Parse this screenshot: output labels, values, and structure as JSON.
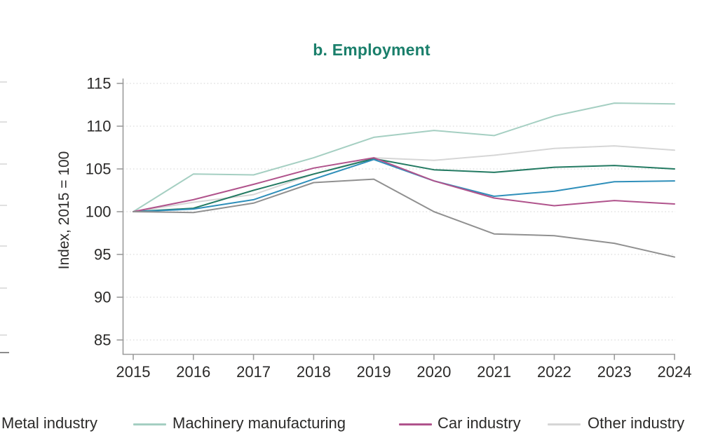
{
  "title": "b. Employment",
  "title_color": "#1a7f6b",
  "axis": {
    "y_title": "Index, 2015 = 100",
    "text_color": "#2b2a29",
    "axis_color": "#9b9b9b",
    "grid_color": "#dcdcdc"
  },
  "chart_data": {
    "type": "line",
    "title": "b. Employment",
    "xlabel": "",
    "ylabel": "Index, 2015 = 100",
    "x": [
      2015,
      2016,
      2017,
      2018,
      2019,
      2020,
      2021,
      2022,
      2023,
      2024
    ],
    "ylim": [
      85,
      115
    ],
    "yticks": [
      85,
      90,
      95,
      100,
      105,
      110,
      115
    ],
    "grid": "horizontal-dotted",
    "legend_position": "bottom",
    "series": [
      {
        "name": "Machinery manufacturing",
        "color": "#a5cfc2",
        "values": [
          100,
          104.4,
          104.3,
          106.3,
          108.7,
          109.5,
          108.9,
          111.2,
          112.7,
          112.6
        ]
      },
      {
        "name": "Other industry",
        "color": "#d6d6d6",
        "values": [
          100,
          101.1,
          102.0,
          104.4,
          106.3,
          106.0,
          106.6,
          107.4,
          107.7,
          107.2
        ]
      },
      {
        "name": "Metal industry",
        "color": "#237a62",
        "values": [
          100,
          100.4,
          102.5,
          104.4,
          106.2,
          104.9,
          104.6,
          105.2,
          105.4,
          105.0
        ]
      },
      {
        "name": "unlabeled-blue-series",
        "color": "#2f8fba",
        "values": [
          100,
          100.3,
          101.4,
          103.8,
          106.1,
          103.6,
          101.8,
          102.4,
          103.5,
          103.6
        ]
      },
      {
        "name": "Car industry",
        "color": "#b0538c",
        "values": [
          100,
          101.4,
          103.2,
          105.1,
          106.3,
          103.6,
          101.6,
          100.7,
          101.3,
          100.9
        ]
      },
      {
        "name": "unlabeled-dark-gray-series",
        "color": "#909090",
        "values": [
          100,
          99.9,
          101.0,
          103.4,
          103.8,
          100.0,
          97.4,
          97.2,
          96.3,
          94.7
        ]
      }
    ]
  },
  "legend": {
    "items": [
      {
        "label": "Metal industry",
        "color": "#237a62",
        "swatch_visible": false
      },
      {
        "label": "Machinery manufacturing",
        "color": "#a5cfc2",
        "swatch_visible": true
      },
      {
        "label": "Car industry",
        "color": "#b0538c",
        "swatch_visible": true
      },
      {
        "label": "Other industry",
        "color": "#d6d6d6",
        "swatch_visible": true
      }
    ]
  }
}
